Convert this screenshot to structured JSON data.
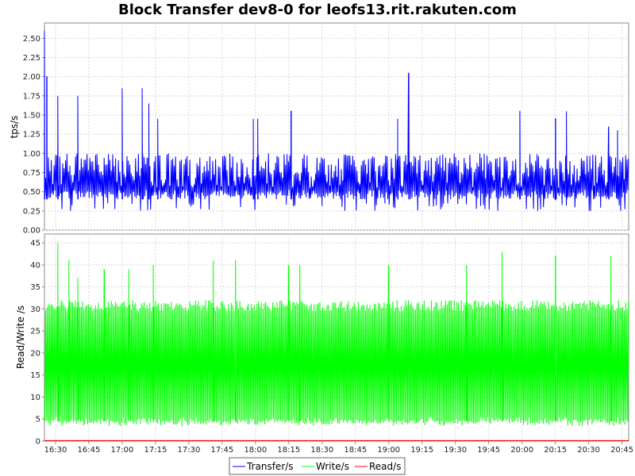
{
  "chart_data": {
    "type": "line",
    "title": "Block Transfer dev8-0 for leofs13.rit.rakuten.com",
    "x_ticks": [
      "16:30",
      "16:45",
      "17:00",
      "17:15",
      "17:30",
      "17:45",
      "18:00",
      "18:15",
      "18:30",
      "18:45",
      "19:00",
      "19:15",
      "19:30",
      "19:45",
      "20:00",
      "20:15",
      "20:30",
      "20:45"
    ],
    "x_range": [
      "16:25",
      "20:48"
    ],
    "grid": true,
    "legend_position": "bottom",
    "panels": [
      {
        "ylabel": "tps/s",
        "ylim": [
          0,
          2.7
        ],
        "y_ticks": [
          "0.00",
          "0.25",
          "0.50",
          "0.75",
          "1.00",
          "1.25",
          "1.50",
          "1.75",
          "2.00",
          "2.25",
          "2.50"
        ],
        "series": [
          {
            "name": "Transfer/s",
            "color": "#0000ff",
            "baseline": 0.4,
            "typical_max": 1.0,
            "spikes": [
              {
                "time": "16:25",
                "value": 2.6
              },
              {
                "time": "16:26",
                "value": 2.0
              },
              {
                "time": "16:31",
                "value": 1.75
              },
              {
                "time": "16:40",
                "value": 1.75
              },
              {
                "time": "17:00",
                "value": 1.85
              },
              {
                "time": "17:09",
                "value": 1.85
              },
              {
                "time": "17:12",
                "value": 1.65
              },
              {
                "time": "17:16",
                "value": 1.45
              },
              {
                "time": "17:59",
                "value": 1.45
              },
              {
                "time": "18:01",
                "value": 1.45
              },
              {
                "time": "18:16",
                "value": 1.55
              },
              {
                "time": "19:09",
                "value": 2.05
              },
              {
                "time": "19:04",
                "value": 1.45
              },
              {
                "time": "19:59",
                "value": 1.55
              },
              {
                "time": "20:15",
                "value": 1.45
              },
              {
                "time": "20:20",
                "value": 1.55
              },
              {
                "time": "20:39",
                "value": 1.35
              },
              {
                "time": "20:43",
                "value": 1.3
              }
            ]
          }
        ]
      },
      {
        "ylabel": "Read/Write /s",
        "ylim": [
          0,
          47
        ],
        "y_ticks": [
          "0",
          "5",
          "10",
          "15",
          "20",
          "25",
          "30",
          "35",
          "40",
          "45"
        ],
        "series": [
          {
            "name": "Write/s",
            "color": "#00ff00",
            "baseline": 4.5,
            "typical_max": 32,
            "spikes": [
              {
                "time": "16:31",
                "value": 45
              },
              {
                "time": "16:36",
                "value": 41
              },
              {
                "time": "16:40",
                "value": 37
              },
              {
                "time": "16:52",
                "value": 39
              },
              {
                "time": "17:03",
                "value": 39
              },
              {
                "time": "17:14",
                "value": 40
              },
              {
                "time": "17:41",
                "value": 41
              },
              {
                "time": "17:51",
                "value": 41
              },
              {
                "time": "18:15",
                "value": 40
              },
              {
                "time": "18:20",
                "value": 40
              },
              {
                "time": "19:00",
                "value": 40
              },
              {
                "time": "19:35",
                "value": 40
              },
              {
                "time": "19:51",
                "value": 43
              },
              {
                "time": "20:15",
                "value": 42
              },
              {
                "time": "20:40",
                "value": 42
              }
            ]
          },
          {
            "name": "Read/s",
            "color": "#ff0000",
            "constant_value": 0
          }
        ]
      }
    ]
  }
}
